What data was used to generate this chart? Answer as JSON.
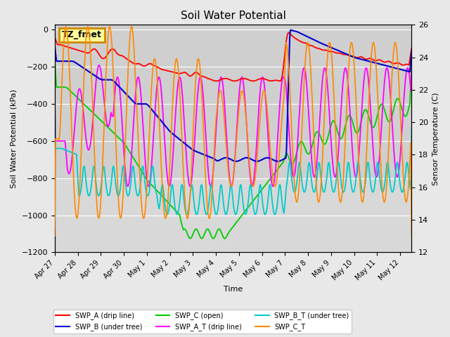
{
  "title": "Soil Water Potential",
  "ylabel_left": "Soil Water Potential (kPa)",
  "ylabel_right": "Sensor Temperature (C)",
  "xlabel": "Time",
  "ylim_left": [
    -1200,
    26
  ],
  "ylim_right": [
    12,
    26
  ],
  "background_color": "#e8e8e8",
  "plot_bg_color": "#d8d8d8",
  "annotation_text": "TZ_fmet",
  "annotation_box_color": "#ffff99",
  "annotation_box_edge": "#cc8800",
  "xtick_labels": [
    "Apr 27",
    "Apr 28",
    "Apr 29",
    "Apr 30",
    "May 1",
    "May 2",
    "May 3",
    "May 4",
    "May 5",
    "May 6",
    "May 7",
    "May 8",
    "May 9",
    "May 10",
    "May 11",
    "May 12"
  ],
  "xtick_positions": [
    0,
    1,
    2,
    3,
    4,
    5,
    6,
    7,
    8,
    9,
    10,
    11,
    12,
    13,
    14,
    15
  ],
  "ytick_left": [
    0,
    -200,
    -400,
    -600,
    -800,
    -1000,
    -1200
  ],
  "ytick_right": [
    12,
    14,
    16,
    18,
    20,
    22,
    24,
    26
  ],
  "swp_a_color": "#ff0000",
  "swp_b_color": "#0000cc",
  "swp_c_color": "#00cc00",
  "swp_at_color": "#ff00ff",
  "swp_bt_color": "#00cccc",
  "swp_ct_color": "#ff8800",
  "legend_labels": [
    "SWP_A (drip line)",
    "SWP_B (under tree)",
    "SWP_C (open)",
    "SWP_A_T (drip line)",
    "SWP_B_T (under tree)",
    "SWP_C_T"
  ]
}
